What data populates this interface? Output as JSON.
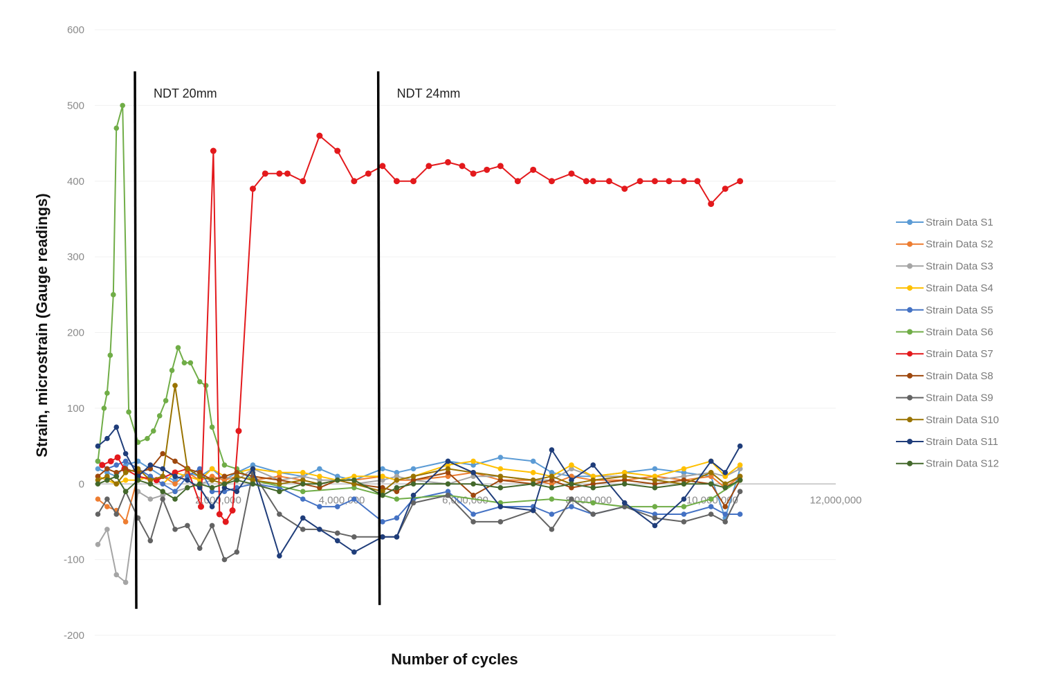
{
  "chart_data": {
    "type": "line",
    "title": "",
    "xlabel": "Number of cycles",
    "ylabel": "Strain, microstrain (Gauge readings)",
    "x_units": "millions of cycles",
    "xlim": [
      0,
      12
    ],
    "ylim": [
      -200,
      600
    ],
    "xticks": [
      2,
      4,
      6,
      8,
      10,
      12
    ],
    "xtick_labels": [
      "2,000,000",
      "4,000,000",
      "6,000,000",
      "8,000,000",
      "10,000,000",
      "12,000,000"
    ],
    "yticks": [
      -200,
      -100,
      0,
      100,
      200,
      300,
      400,
      500,
      600
    ],
    "ytick_labels": [
      "-200",
      "-100",
      "0",
      "100",
      "200",
      "300",
      "400",
      "500",
      "600"
    ],
    "grid": "horizontal",
    "legend_position": "right",
    "annotations": [
      {
        "label": "NDT 20mm",
        "x": 0.65,
        "y_range": [
          -165,
          545
        ]
      },
      {
        "label": "NDT 24mm",
        "x": 4.59,
        "y_range": [
          -160,
          545
        ]
      }
    ],
    "shared_x": [
      0.05,
      0.2,
      0.35,
      0.5,
      0.7,
      0.9,
      1.1,
      1.3,
      1.5,
      1.7,
      1.9,
      2.1,
      2.3,
      2.56,
      2.99,
      3.37,
      3.64,
      3.93,
      4.2,
      4.66,
      4.89,
      5.16,
      5.72,
      6.13,
      6.57,
      7.1,
      7.4,
      7.72,
      8.07,
      8.58,
      9.07,
      9.54,
      9.98,
      10.21,
      10.45
    ],
    "series": [
      {
        "name": "Strain Data S1",
        "color": "#5b9bd5",
        "y": [
          20,
          15,
          10,
          25,
          30,
          20,
          10,
          5,
          15,
          10,
          20,
          5,
          15,
          25,
          15,
          10,
          20,
          10,
          5,
          20,
          15,
          20,
          30,
          25,
          35,
          30,
          15,
          10,
          10,
          15,
          20,
          15,
          10,
          -45,
          20
        ]
      },
      {
        "name": "Strain Data S2",
        "color": "#ed7d31",
        "y": [
          -20,
          -30,
          -35,
          -50,
          10,
          5,
          10,
          0,
          15,
          5,
          10,
          5,
          10,
          5,
          10,
          5,
          0,
          5,
          5,
          10,
          5,
          5,
          10,
          15,
          5,
          5,
          0,
          10,
          5,
          5,
          10,
          5,
          10,
          -5,
          10
        ]
      },
      {
        "name": "Strain Data S3",
        "color": "#a5a5a5",
        "y": [
          -80,
          -60,
          -120,
          -130,
          -10,
          -20,
          -15,
          -10,
          -5,
          0,
          5,
          10,
          5,
          20,
          5,
          10,
          5,
          5,
          0,
          5,
          10,
          5,
          0,
          10,
          10,
          5,
          5,
          20,
          10,
          10,
          5,
          10,
          15,
          10,
          20
        ]
      },
      {
        "name": "Strain Data S4",
        "color": "#ffc000",
        "y": [
          10,
          5,
          0,
          5,
          5,
          10,
          0,
          15,
          10,
          5,
          20,
          10,
          15,
          20,
          15,
          15,
          10,
          5,
          10,
          10,
          5,
          10,
          25,
          30,
          20,
          15,
          10,
          25,
          10,
          15,
          10,
          20,
          30,
          10,
          25
        ]
      },
      {
        "name": "Strain Data S5",
        "color": "#4472c4",
        "y": [
          30,
          20,
          25,
          30,
          20,
          10,
          0,
          -10,
          10,
          20,
          -10,
          -10,
          -5,
          0,
          -5,
          -20,
          -30,
          -30,
          -20,
          -50,
          -45,
          -20,
          -10,
          -40,
          -30,
          -30,
          -40,
          -30,
          -40,
          -30,
          -40,
          -40,
          -30,
          -40,
          -40
        ]
      },
      {
        "name": "Strain Data S6",
        "color": "#70ad47",
        "x": [
          0.05,
          0.15,
          0.2,
          0.25,
          0.3,
          0.35,
          0.45,
          0.55,
          0.7,
          0.85,
          0.95,
          1.05,
          1.15,
          1.25,
          1.35,
          1.45,
          1.55,
          1.7,
          1.8,
          1.9,
          2.1,
          2.3,
          2.56,
          3.37,
          4.2,
          4.89,
          5.72,
          6.57,
          7.4,
          8.07,
          8.58,
          9.07,
          9.54,
          9.98,
          10.45
        ],
        "y": [
          30,
          100,
          120,
          170,
          250,
          470,
          500,
          95,
          55,
          60,
          70,
          90,
          110,
          150,
          180,
          160,
          160,
          135,
          130,
          75,
          25,
          20,
          5,
          -10,
          -5,
          -20,
          -15,
          -25,
          -20,
          -25,
          -30,
          -30,
          -30,
          -20,
          5
        ]
      },
      {
        "name": "Strain Data S7",
        "color": "#e3191c",
        "x": [
          0.12,
          0.26,
          0.37,
          0.48,
          0.7,
          1.0,
          1.3,
          1.5,
          1.72,
          1.92,
          2.02,
          2.12,
          2.23,
          2.33,
          2.56,
          2.76,
          2.99,
          3.12,
          3.37,
          3.64,
          3.93,
          4.2,
          4.43,
          4.66,
          4.89,
          5.16,
          5.41,
          5.72,
          5.95,
          6.13,
          6.35,
          6.57,
          6.85,
          7.1,
          7.4,
          7.72,
          7.96,
          8.07,
          8.33,
          8.58,
          8.83,
          9.07,
          9.3,
          9.54,
          9.76,
          9.98,
          10.21,
          10.45
        ],
        "y": [
          25,
          30,
          35,
          20,
          10,
          5,
          15,
          20,
          -30,
          440,
          -40,
          -50,
          -35,
          70,
          390,
          410,
          410,
          410,
          400,
          460,
          440,
          400,
          410,
          420,
          400,
          400,
          420,
          425,
          420,
          410,
          415,
          420,
          400,
          415,
          400,
          410,
          400,
          400,
          400,
          390,
          400,
          400,
          400,
          400,
          400,
          370,
          390,
          400
        ]
      },
      {
        "name": "Strain Data S8",
        "color": "#9e480e",
        "y": [
          10,
          20,
          15,
          20,
          15,
          20,
          40,
          30,
          20,
          15,
          5,
          10,
          15,
          10,
          5,
          0,
          -5,
          5,
          0,
          -5,
          -10,
          5,
          15,
          -15,
          5,
          0,
          5,
          -5,
          0,
          5,
          0,
          5,
          0,
          -30,
          5
        ]
      },
      {
        "name": "Strain Data S9",
        "color": "#636363",
        "y": [
          -40,
          -20,
          -40,
          -10,
          -45,
          -75,
          -20,
          -60,
          -55,
          -85,
          -55,
          -100,
          -90,
          15,
          -40,
          -60,
          -60,
          -65,
          -70,
          -70,
          -70,
          -25,
          -15,
          -50,
          -50,
          -35,
          -60,
          -20,
          -40,
          -30,
          -45,
          -50,
          -40,
          -50,
          -10
        ]
      },
      {
        "name": "Strain Data S10",
        "color": "#997300",
        "y": [
          5,
          10,
          0,
          15,
          20,
          5,
          10,
          130,
          20,
          10,
          5,
          0,
          10,
          5,
          0,
          5,
          0,
          5,
          0,
          -10,
          5,
          10,
          20,
          15,
          10,
          5,
          10,
          0,
          5,
          10,
          5,
          0,
          15,
          0,
          10
        ]
      },
      {
        "name": "Strain Data S11",
        "color": "#1f3d7a",
        "y": [
          50,
          60,
          75,
          40,
          10,
          25,
          20,
          10,
          5,
          -5,
          -30,
          -5,
          -10,
          20,
          -95,
          -45,
          -60,
          -75,
          -90,
          -70,
          -70,
          -15,
          30,
          15,
          -30,
          -35,
          45,
          5,
          25,
          -25,
          -55,
          -20,
          30,
          15,
          50
        ]
      },
      {
        "name": "Strain Data S12",
        "color": "#43682b",
        "y": [
          0,
          5,
          10,
          -10,
          5,
          0,
          -10,
          -20,
          -5,
          0,
          -5,
          0,
          5,
          0,
          -10,
          0,
          0,
          5,
          5,
          -15,
          -5,
          0,
          0,
          0,
          -5,
          0,
          -5,
          0,
          -5,
          0,
          -5,
          0,
          0,
          -5,
          5
        ]
      }
    ]
  }
}
